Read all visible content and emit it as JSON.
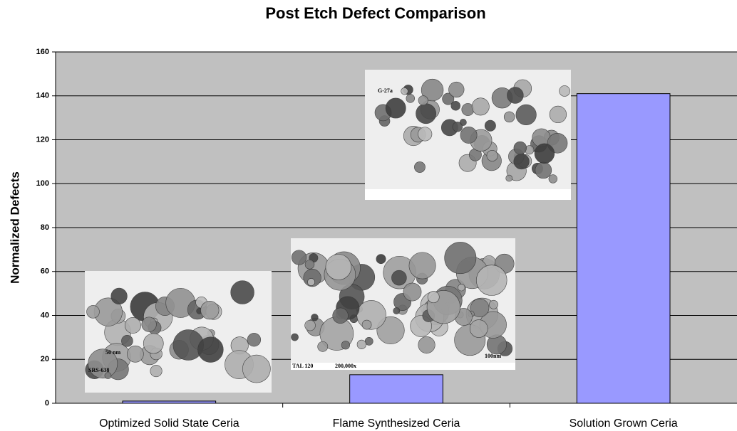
{
  "chart_data": {
    "type": "bar",
    "title": "Post Etch Defect Comparison",
    "y_label": "Normalized Defects",
    "categories": [
      "Optimized Solid State Ceria",
      "Flame Synthesized Ceria",
      "Solution Grown Ceria"
    ],
    "values": [
      1,
      13,
      141
    ],
    "color": "#9999ff",
    "ylim": [
      0,
      160
    ],
    "yticks": [
      0,
      20,
      40,
      60,
      80,
      100,
      120,
      140,
      160
    ],
    "grid": true,
    "annotations": [
      "50 nm",
      "SRS-638",
      "TAL 120",
      "200,000x",
      "100nm",
      "G-27a"
    ]
  }
}
